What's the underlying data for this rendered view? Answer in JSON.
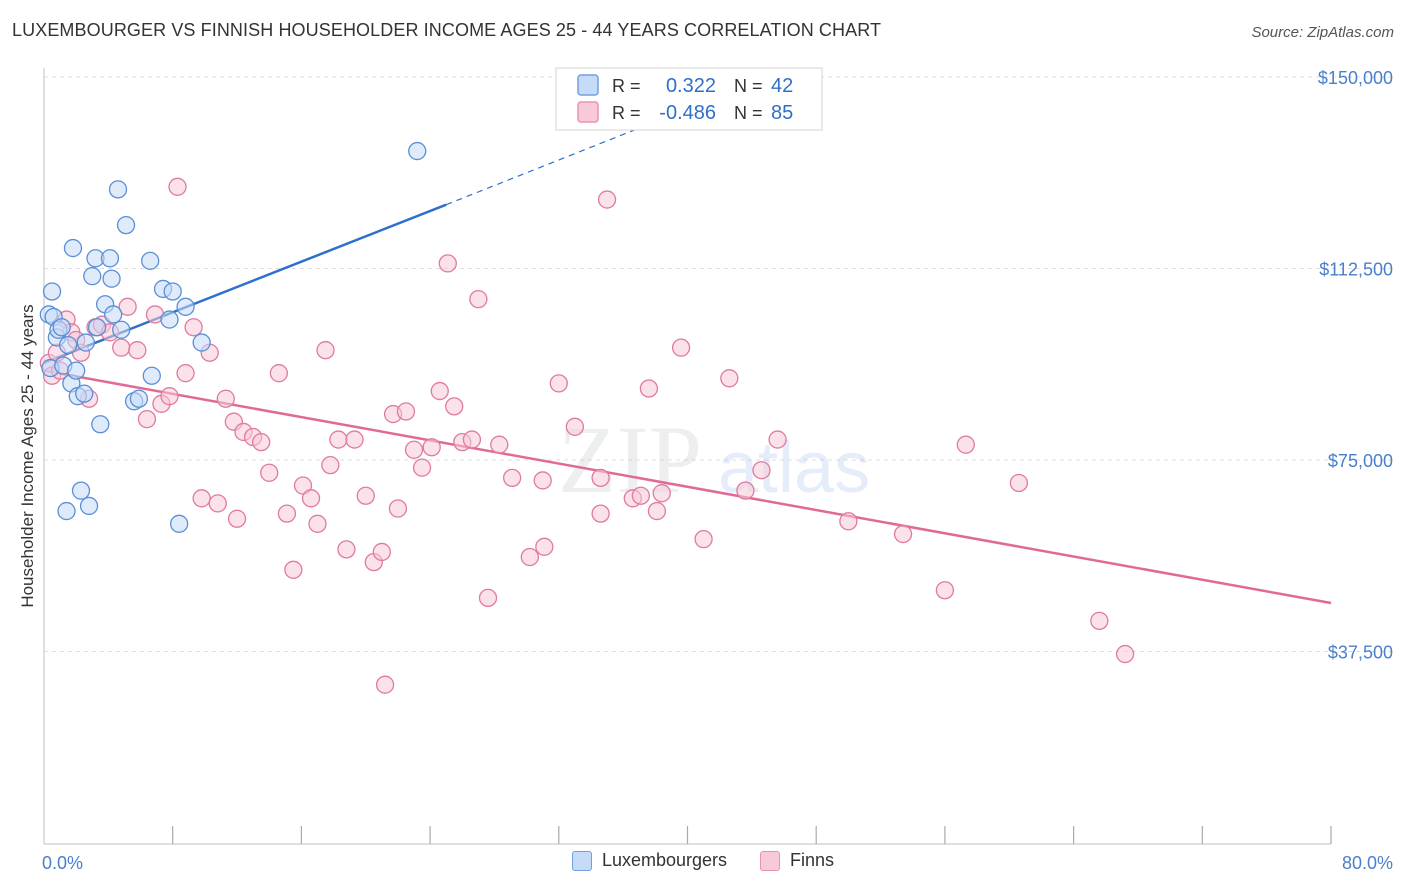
{
  "title": "LUXEMBOURGER VS FINNISH HOUSEHOLDER INCOME AGES 25 - 44 YEARS CORRELATION CHART",
  "source": "Source: ZipAtlas.com",
  "watermark": {
    "zip": "ZIP",
    "atlas": "atlas"
  },
  "legend": {
    "r_label": "R =",
    "n_label": "N =",
    "rows": [
      {
        "r": "0.322",
        "n": "42",
        "color": "#6fa1e0",
        "fill": "#c5dbf7"
      },
      {
        "r": "-0.486",
        "n": "85",
        "color": "#e892b0",
        "fill": "#f8c9d9"
      }
    ]
  },
  "bottom_legend": [
    {
      "label": "Luxembourgers",
      "color": "#6fa1e0",
      "fill": "#c5dbf7"
    },
    {
      "label": "Finns",
      "color": "#e892b0",
      "fill": "#f8c9d9"
    }
  ],
  "chart_data": {
    "type": "scatter",
    "xlabel": "",
    "ylabel": "Householder Income Ages 25 - 44 years",
    "xlim": [
      0,
      80
    ],
    "ylim": [
      0,
      155000
    ],
    "x_tick_labels": [
      "0.0%",
      "80.0%"
    ],
    "y_ticks": [
      37500,
      75000,
      112500,
      150000
    ],
    "y_tick_labels": [
      "$37,500",
      "$75,000",
      "$112,500",
      "$150,000"
    ],
    "grid": true,
    "series": [
      {
        "name": "Luxembourgers",
        "color": "#5a8fd6",
        "fill": "#c5dbf7",
        "points": [
          [
            0.3,
            103500
          ],
          [
            0.4,
            93000
          ],
          [
            0.5,
            108000
          ],
          [
            0.6,
            103000
          ],
          [
            0.8,
            99000
          ],
          [
            0.9,
            100500
          ],
          [
            1.1,
            101000
          ],
          [
            1.2,
            93500
          ],
          [
            1.4,
            65000
          ],
          [
            1.5,
            97500
          ],
          [
            1.7,
            90000
          ],
          [
            1.8,
            116500
          ],
          [
            2.0,
            92500
          ],
          [
            2.1,
            87500
          ],
          [
            2.3,
            69000
          ],
          [
            2.5,
            88000
          ],
          [
            2.6,
            98000
          ],
          [
            2.8,
            66000
          ],
          [
            3.0,
            111000
          ],
          [
            3.2,
            114500
          ],
          [
            3.3,
            101000
          ],
          [
            3.5,
            82000
          ],
          [
            3.8,
            105500
          ],
          [
            4.1,
            114500
          ],
          [
            4.2,
            110500
          ],
          [
            4.3,
            103500
          ],
          [
            4.6,
            128000
          ],
          [
            4.8,
            100500
          ],
          [
            5.1,
            121000
          ],
          [
            5.6,
            86500
          ],
          [
            5.9,
            87000
          ],
          [
            6.6,
            114000
          ],
          [
            6.7,
            91500
          ],
          [
            7.4,
            108500
          ],
          [
            7.8,
            102500
          ],
          [
            8.0,
            108000
          ],
          [
            8.4,
            62500
          ],
          [
            8.8,
            105000
          ],
          [
            9.8,
            98000
          ],
          [
            23.2,
            135500
          ]
        ],
        "trend": {
          "x0": 0,
          "y0": 94000,
          "x1": 25,
          "y1": 125000,
          "dash_x1": 37,
          "dash_y1": 140000
        }
      },
      {
        "name": "Finns",
        "color": "#e07aa0",
        "fill": "#f8c9d9",
        "points": [
          [
            0.3,
            94000
          ],
          [
            0.5,
            91500
          ],
          [
            0.8,
            96000
          ],
          [
            1.0,
            92500
          ],
          [
            1.4,
            102500
          ],
          [
            1.7,
            100000
          ],
          [
            2.0,
            98500
          ],
          [
            2.3,
            96000
          ],
          [
            2.8,
            87000
          ],
          [
            3.2,
            101000
          ],
          [
            3.6,
            101500
          ],
          [
            4.1,
            100000
          ],
          [
            4.8,
            97000
          ],
          [
            5.2,
            105000
          ],
          [
            5.8,
            96500
          ],
          [
            6.4,
            83000
          ],
          [
            6.9,
            103500
          ],
          [
            7.3,
            86000
          ],
          [
            7.8,
            87500
          ],
          [
            8.3,
            128500
          ],
          [
            8.8,
            92000
          ],
          [
            9.3,
            101000
          ],
          [
            9.8,
            67500
          ],
          [
            10.3,
            96000
          ],
          [
            10.8,
            66500
          ],
          [
            11.3,
            87000
          ],
          [
            11.8,
            82500
          ],
          [
            12.0,
            63500
          ],
          [
            12.4,
            80500
          ],
          [
            13.0,
            79500
          ],
          [
            13.5,
            78500
          ],
          [
            14.0,
            72500
          ],
          [
            14.6,
            92000
          ],
          [
            15.1,
            64500
          ],
          [
            15.5,
            53500
          ],
          [
            16.1,
            70000
          ],
          [
            16.6,
            67500
          ],
          [
            17.0,
            62500
          ],
          [
            17.5,
            96500
          ],
          [
            17.8,
            74000
          ],
          [
            18.3,
            79000
          ],
          [
            18.8,
            57500
          ],
          [
            19.3,
            79000
          ],
          [
            20.0,
            68000
          ],
          [
            20.5,
            55000
          ],
          [
            21.0,
            57000
          ],
          [
            21.2,
            31000
          ],
          [
            21.7,
            84000
          ],
          [
            22.0,
            65500
          ],
          [
            22.5,
            84500
          ],
          [
            23.0,
            77000
          ],
          [
            23.5,
            73500
          ],
          [
            24.1,
            77500
          ],
          [
            24.6,
            88500
          ],
          [
            25.1,
            113500
          ],
          [
            25.5,
            85500
          ],
          [
            26.0,
            78500
          ],
          [
            26.6,
            79000
          ],
          [
            27.0,
            106500
          ],
          [
            27.6,
            48000
          ],
          [
            28.3,
            78000
          ],
          [
            29.1,
            71500
          ],
          [
            30.2,
            56000
          ],
          [
            31.1,
            58000
          ],
          [
            31.0,
            71000
          ],
          [
            32.0,
            90000
          ],
          [
            33.0,
            81500
          ],
          [
            34.6,
            71500
          ],
          [
            34.6,
            64500
          ],
          [
            35.0,
            126000
          ],
          [
            36.6,
            67500
          ],
          [
            37.1,
            68000
          ],
          [
            37.6,
            89000
          ],
          [
            38.1,
            65000
          ],
          [
            38.4,
            68500
          ],
          [
            39.6,
            97000
          ],
          [
            41.0,
            59500
          ],
          [
            42.6,
            91000
          ],
          [
            43.6,
            69000
          ],
          [
            44.6,
            73000
          ],
          [
            45.6,
            79000
          ],
          [
            50.0,
            63000
          ],
          [
            53.4,
            60500
          ],
          [
            56.0,
            49500
          ],
          [
            57.3,
            78000
          ],
          [
            60.6,
            70500
          ],
          [
            65.6,
            43500
          ],
          [
            67.2,
            37000
          ]
        ],
        "trend": {
          "x0": 0,
          "y0": 92500,
          "x1": 80,
          "y1": 47000
        }
      }
    ]
  }
}
